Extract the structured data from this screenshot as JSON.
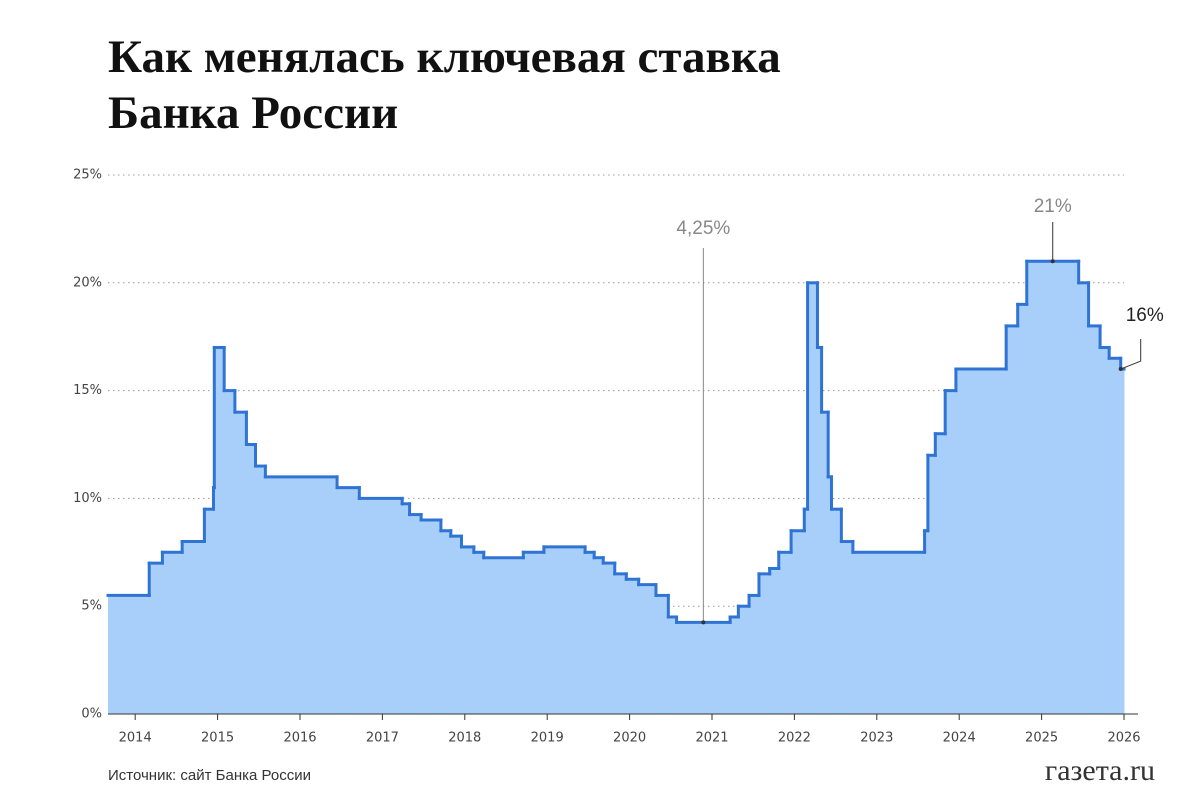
{
  "chart_data": {
    "type": "step",
    "title": [
      "Как менялась ключевая ставка",
      "Банка России"
    ],
    "source": "Источник: сайт Банка России",
    "logo": "газета.ru",
    "annotations": {
      "min": "4,25%",
      "max": "21%",
      "last": "16%"
    },
    "x": [
      2013.67,
      2014.17,
      2014.33,
      2014.57,
      2014.84,
      2014.95,
      2014.96,
      2015.08,
      2015.21,
      2015.35,
      2015.46,
      2015.58,
      2016.45,
      2016.72,
      2017.24,
      2017.33,
      2017.47,
      2017.71,
      2017.83,
      2017.96,
      2018.11,
      2018.23,
      2018.71,
      2018.96,
      2019.46,
      2019.57,
      2019.68,
      2019.82,
      2019.96,
      2020.11,
      2020.32,
      2020.47,
      2020.57,
      2021.22,
      2021.32,
      2021.45,
      2021.57,
      2021.7,
      2021.81,
      2021.96,
      2022.12,
      2022.16,
      2022.28,
      2022.33,
      2022.41,
      2022.45,
      2022.57,
      2022.71,
      2023.58,
      2023.62,
      2023.71,
      2023.83,
      2023.96,
      2024.57,
      2024.71,
      2024.82,
      2025.45,
      2025.57,
      2025.71,
      2025.82,
      2025.96
    ],
    "series": [
      {
        "name": "Ключевая ставка",
        "color": "#2f74d4",
        "fill": "#a8cffa",
        "values": [
          5.5,
          7,
          7.5,
          8,
          9.5,
          10.5,
          17,
          15,
          14,
          12.5,
          11.5,
          11,
          10.5,
          10,
          9.75,
          9.25,
          9,
          8.5,
          8.25,
          7.75,
          7.5,
          7.25,
          7.5,
          7.75,
          7.5,
          7.25,
          7,
          6.5,
          6.25,
          6,
          5.5,
          4.5,
          4.25,
          4.5,
          5,
          5.5,
          6.5,
          6.75,
          7.5,
          8.5,
          9.5,
          20,
          17,
          14,
          11,
          9.5,
          8,
          7.5,
          8.5,
          12,
          13,
          15,
          16,
          18,
          19,
          21,
          20,
          18,
          17,
          16.5,
          16
        ]
      }
    ],
    "xlim": [
      2013.67,
      2026
    ],
    "xticks": [
      2014,
      2015,
      2016,
      2017,
      2018,
      2019,
      2020,
      2021,
      2022,
      2023,
      2024,
      2025,
      2026
    ],
    "ylim": [
      0,
      25
    ],
    "yticks": [
      {
        "value": 0,
        "label": "0%"
      },
      {
        "value": 5,
        "label": "5%"
      },
      {
        "value": 10,
        "label": "10%"
      },
      {
        "value": 15,
        "label": "15%"
      },
      {
        "value": 20,
        "label": "20%"
      },
      {
        "value": 25,
        "label": "25%"
      }
    ],
    "grid": true
  }
}
